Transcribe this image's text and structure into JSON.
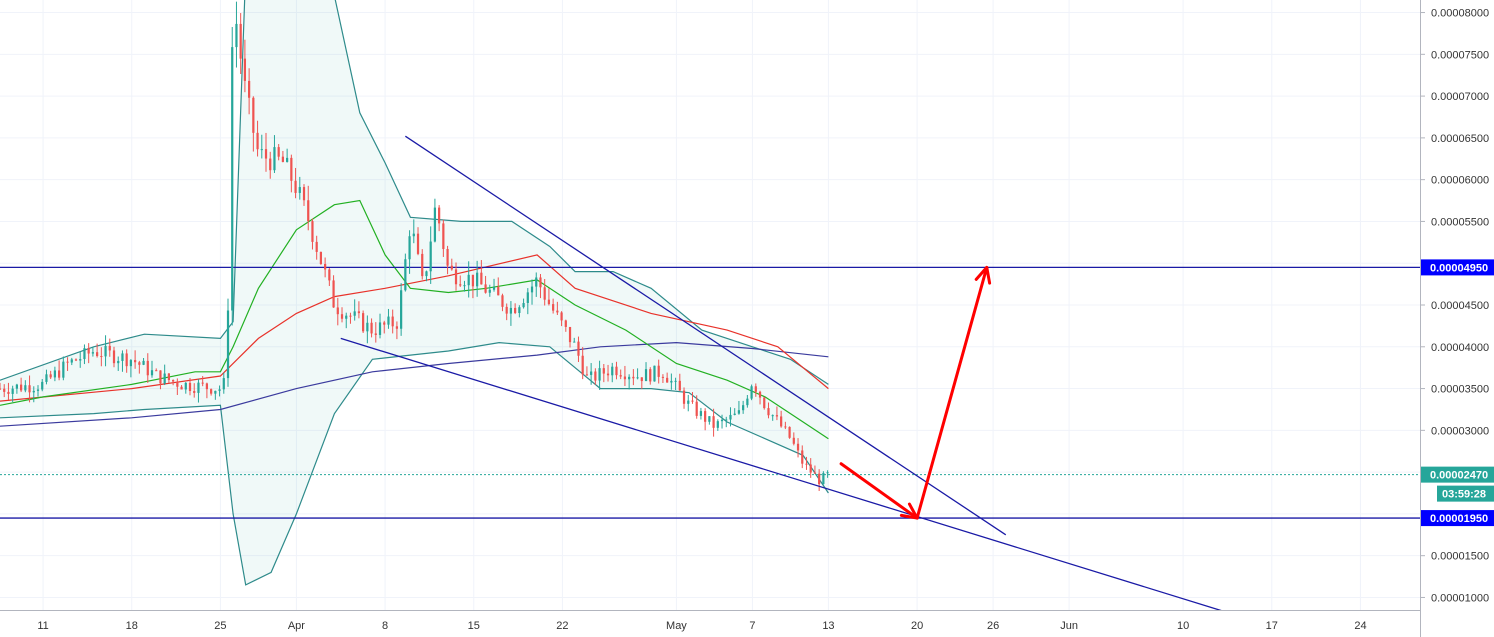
{
  "chart_data": {
    "type": "candlestick",
    "axes": {
      "y_ticks": [
        1e-05,
        1.5e-05,
        2e-05,
        2.5e-05,
        3e-05,
        3.5e-05,
        4e-05,
        4.5e-05,
        5e-05,
        5.5e-05,
        6e-05,
        6.5e-05,
        7e-05,
        7.5e-05,
        8e-05
      ],
      "y_tick_labels": [
        "0.00001000",
        "0.00001500",
        "0.00002000",
        "0.00002500",
        "0.00003000",
        "0.00003500",
        "0.00004000",
        "0.00004500",
        "0.00005000",
        "0.00005500",
        "0.00006000",
        "0.00006500",
        "0.00007000",
        "0.00007500",
        "0.00008000"
      ],
      "ylim": [
        8.5e-06,
        8.15e-05
      ],
      "x_ticks": [
        {
          "label": "11",
          "day": -20
        },
        {
          "label": "18",
          "day": -13
        },
        {
          "label": "25",
          "day": -6
        },
        {
          "label": "Apr",
          "day": 0
        },
        {
          "label": "8",
          "day": 7
        },
        {
          "label": "15",
          "day": 14
        },
        {
          "label": "22",
          "day": 21
        },
        {
          "label": "May",
          "day": 30
        },
        {
          "label": "7",
          "day": 36
        },
        {
          "label": "13",
          "day": 42
        },
        {
          "label": "20",
          "day": 49
        },
        {
          "label": "26",
          "day": 55
        },
        {
          "label": "Jun",
          "day": 61
        },
        {
          "label": "10",
          "day": 70
        },
        {
          "label": "17",
          "day": 77
        },
        {
          "label": "24",
          "day": 84
        }
      ],
      "xlim": [
        -23.4,
        88.7
      ],
      "grid": true
    },
    "horizontal_levels": [
      {
        "value": 4.95e-05,
        "label": "0.00004950",
        "color": "#1a1aa6"
      },
      {
        "value": 1.95e-05,
        "label": "0.00001950",
        "color": "#1a1aa6"
      }
    ],
    "current_price": {
      "value": 2.47e-05,
      "label": "0.00002470",
      "countdown": "03:59:28",
      "color": "#26a69a"
    },
    "anchors": [
      {
        "day": -23.4,
        "close": 3.5e-05
      },
      {
        "day": -20,
        "close": 3.55e-05
      },
      {
        "day": -18,
        "close": 3.8e-05
      },
      {
        "day": -16,
        "close": 3.95e-05
      },
      {
        "day": -13,
        "close": 3.85e-05
      },
      {
        "day": -11,
        "close": 3.65e-05
      },
      {
        "day": -9,
        "close": 3.55e-05
      },
      {
        "day": -6,
        "close": 3.5e-05
      },
      {
        "day": -5.5,
        "close": 3.6e-05
      },
      {
        "day": -5,
        "close": 8.2e-05
      },
      {
        "day": -4,
        "close": 7e-05
      },
      {
        "day": -3,
        "close": 6.3e-05
      },
      {
        "day": -1,
        "close": 6.2e-05
      },
      {
        "day": 0,
        "close": 5.9e-05
      },
      {
        "day": 1,
        "close": 5.5e-05
      },
      {
        "day": 2,
        "close": 5e-05
      },
      {
        "day": 3,
        "close": 4.5e-05
      },
      {
        "day": 6,
        "close": 4.2e-05
      },
      {
        "day": 8,
        "close": 4.3e-05
      },
      {
        "day": 9,
        "close": 5.5e-05
      },
      {
        "day": 10,
        "close": 4.7e-05
      },
      {
        "day": 11,
        "close": 5.7e-05
      },
      {
        "day": 12,
        "close": 4.9e-05
      },
      {
        "day": 14,
        "close": 4.8e-05
      },
      {
        "day": 17,
        "close": 4.45e-05
      },
      {
        "day": 19,
        "close": 4.8e-05
      },
      {
        "day": 20,
        "close": 4.5e-05
      },
      {
        "day": 22,
        "close": 4e-05
      },
      {
        "day": 23,
        "close": 3.6e-05
      },
      {
        "day": 25,
        "close": 3.75e-05
      },
      {
        "day": 27,
        "close": 3.65e-05
      },
      {
        "day": 29,
        "close": 3.7e-05
      },
      {
        "day": 31,
        "close": 3.3e-05
      },
      {
        "day": 33,
        "close": 3.05e-05
      },
      {
        "day": 35,
        "close": 3.2e-05
      },
      {
        "day": 36,
        "close": 3.6e-05
      },
      {
        "day": 37,
        "close": 3.3e-05
      },
      {
        "day": 39,
        "close": 2.9e-05
      },
      {
        "day": 40,
        "close": 2.6e-05
      },
      {
        "day": 41.3,
        "close": 2.4e-05
      },
      {
        "day": 42,
        "close": 2.47e-05
      }
    ],
    "indicators": {
      "ema_green": [
        [
          -23.4,
          3.3e-05
        ],
        [
          -20,
          3.4e-05
        ],
        [
          -13,
          3.55e-05
        ],
        [
          -8,
          3.7e-05
        ],
        [
          -6,
          3.7e-05
        ],
        [
          -5,
          4e-05
        ],
        [
          -3,
          4.7e-05
        ],
        [
          0,
          5.4e-05
        ],
        [
          3,
          5.7e-05
        ],
        [
          5,
          5.75e-05
        ],
        [
          7,
          5.1e-05
        ],
        [
          9,
          4.7e-05
        ],
        [
          12,
          4.65e-05
        ],
        [
          15,
          4.7e-05
        ],
        [
          19,
          4.8e-05
        ],
        [
          22,
          4.5e-05
        ],
        [
          26,
          4.2e-05
        ],
        [
          30,
          3.8e-05
        ],
        [
          34,
          3.6e-05
        ],
        [
          37,
          3.4e-05
        ],
        [
          40,
          3.1e-05
        ],
        [
          42,
          2.9e-05
        ]
      ],
      "ema_red": [
        [
          -23.4,
          3.35e-05
        ],
        [
          -13,
          3.5e-05
        ],
        [
          -6,
          3.65e-05
        ],
        [
          -3,
          4.1e-05
        ],
        [
          0,
          4.4e-05
        ],
        [
          3,
          4.6e-05
        ],
        [
          7,
          4.7e-05
        ],
        [
          12,
          4.85e-05
        ],
        [
          19,
          5.1e-05
        ],
        [
          22,
          4.7e-05
        ],
        [
          28,
          4.4e-05
        ],
        [
          34,
          4.2e-05
        ],
        [
          38,
          4e-05
        ],
        [
          42,
          3.5e-05
        ]
      ],
      "sma_blue": [
        [
          -23.4,
          3.05e-05
        ],
        [
          -13,
          3.15e-05
        ],
        [
          -6,
          3.25e-05
        ],
        [
          0,
          3.5e-05
        ],
        [
          6,
          3.7e-05
        ],
        [
          12,
          3.8e-05
        ],
        [
          19,
          3.9e-05
        ],
        [
          24,
          4e-05
        ],
        [
          30,
          4.05e-05
        ],
        [
          36,
          3.98e-05
        ],
        [
          42,
          3.88e-05
        ]
      ],
      "bb_upper": [
        [
          -23.4,
          3.6e-05
        ],
        [
          -16,
          4e-05
        ],
        [
          -12,
          4.15e-05
        ],
        [
          -6,
          4.1e-05
        ],
        [
          -5,
          4.3e-05
        ],
        [
          -4,
          8.5e-05
        ],
        [
          0,
          9.5e-05
        ],
        [
          3,
          8.2e-05
        ],
        [
          5,
          6.8e-05
        ],
        [
          7,
          6.2e-05
        ],
        [
          9,
          5.55e-05
        ],
        [
          13,
          5.5e-05
        ],
        [
          17,
          5.5e-05
        ],
        [
          20,
          5.2e-05
        ],
        [
          22,
          4.9e-05
        ],
        [
          25,
          4.9e-05
        ],
        [
          28,
          4.7e-05
        ],
        [
          32,
          4.2e-05
        ],
        [
          36,
          4e-05
        ],
        [
          39,
          3.85e-05
        ],
        [
          42,
          3.55e-05
        ]
      ],
      "bb_lower": [
        [
          -23.4,
          3.15e-05
        ],
        [
          -16,
          3.2e-05
        ],
        [
          -12,
          3.25e-05
        ],
        [
          -6,
          3.3e-05
        ],
        [
          -5,
          2e-05
        ],
        [
          -4,
          1.15e-05
        ],
        [
          -2,
          1.3e-05
        ],
        [
          0,
          2e-05
        ],
        [
          3,
          3.2e-05
        ],
        [
          6,
          3.85e-05
        ],
        [
          9,
          3.9e-05
        ],
        [
          12,
          3.95e-05
        ],
        [
          16,
          4.05e-05
        ],
        [
          20,
          4e-05
        ],
        [
          24,
          3.5e-05
        ],
        [
          28,
          3.5e-05
        ],
        [
          31,
          3.45e-05
        ],
        [
          34,
          3.1e-05
        ],
        [
          37,
          2.9e-05
        ],
        [
          40,
          2.7e-05
        ],
        [
          42,
          2.25e-05
        ]
      ]
    },
    "trendlines": [
      {
        "from": [
          8.6,
          6.52e-05
        ],
        "to": [
          56,
          1.75e-05
        ],
        "color": "#1a1aa6"
      },
      {
        "from": [
          3.5,
          4.1e-05
        ],
        "to": [
          75,
          7.5e-06
        ],
        "color": "#1a1aa6"
      }
    ],
    "annotations": [
      {
        "type": "arrow",
        "path": [
          [
            43,
            2.6e-05
          ],
          [
            49,
            1.95e-05
          ]
        ],
        "color": "#ff0000"
      },
      {
        "type": "arrow",
        "path": [
          [
            49,
            1.95e-05
          ],
          [
            54.5,
            4.95e-05
          ]
        ],
        "color": "#ff0000"
      }
    ],
    "colors": {
      "up": "#26a69a",
      "down": "#ef5350",
      "grid": "#f0f3fa",
      "axis_text": "#333333"
    }
  }
}
